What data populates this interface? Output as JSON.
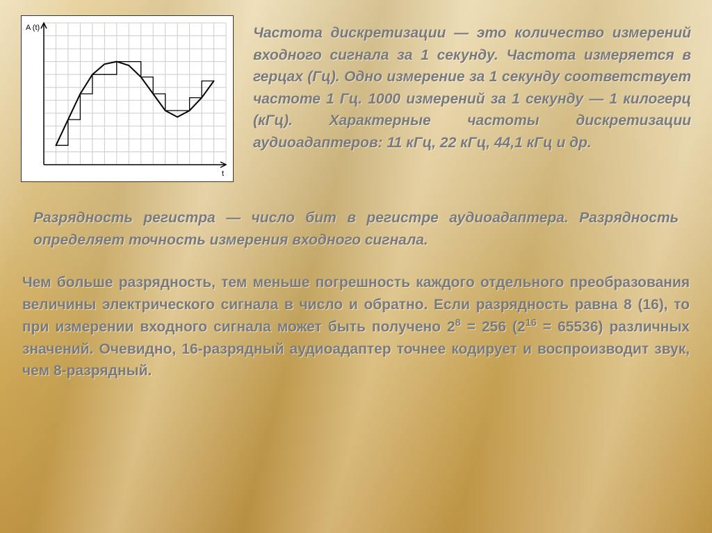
{
  "background": {
    "gradient_top": "#e8d3a0",
    "gradient_bottom": "#c79b47"
  },
  "chart": {
    "type": "line",
    "y_axis_label": "A (t)",
    "x_axis_label": "t",
    "grid_color": "#cccccc",
    "axis_color": "#000000",
    "curve_color": "#000000",
    "step_color": "#000000",
    "background_color": "#ffffff",
    "grid_cols": 15,
    "grid_rows": 11,
    "curve_points": [
      [
        1.0,
        9.5
      ],
      [
        2.0,
        7.5
      ],
      [
        3.0,
        5.5
      ],
      [
        4.0,
        4.0
      ],
      [
        5.0,
        3.2
      ],
      [
        6.0,
        3.0
      ],
      [
        7.0,
        3.3
      ],
      [
        8.0,
        4.2
      ],
      [
        9.0,
        5.5
      ],
      [
        10.0,
        6.8
      ],
      [
        11.0,
        7.3
      ],
      [
        12.0,
        6.8
      ],
      [
        13.0,
        5.8
      ],
      [
        14.0,
        4.5
      ]
    ],
    "step_points": [
      [
        1.0,
        9.5
      ],
      [
        2.0,
        9.5
      ],
      [
        2.0,
        7.5
      ],
      [
        3.0,
        7.5
      ],
      [
        3.0,
        5.5
      ],
      [
        4.0,
        5.5
      ],
      [
        4.0,
        4.0
      ],
      [
        6.0,
        4.0
      ],
      [
        6.0,
        3.0
      ],
      [
        8.0,
        3.0
      ],
      [
        8.0,
        4.2
      ],
      [
        9.0,
        4.2
      ],
      [
        9.0,
        5.5
      ],
      [
        10.0,
        5.5
      ],
      [
        10.0,
        6.8
      ],
      [
        12.0,
        6.8
      ],
      [
        12.0,
        5.8
      ],
      [
        13.0,
        5.8
      ],
      [
        13.0,
        4.5
      ],
      [
        14.0,
        4.5
      ]
    ],
    "label_fontsize": 11
  },
  "text": {
    "color": "#7a7a7a",
    "shadow_color": "#ffffff",
    "fontsize_pt": 16,
    "para1": "Частота дискретизации — это количество измерений входного сигнала за 1 секунду. Частота измеряется в герцах (Гц). Одно измерение за 1 секунду соответствует частоте 1 Гц. 1000 измерений за 1 секунду — 1 килогерц (кГц). Характерные частоты дискретизации аудиоадаптеров: 11 кГц, 22 кГц, 44,1 кГц и др.",
    "para2": "Разрядность регистра — число бит в регистре аудиоадаптера. Разрядность определяет точность измерения входного сигнала.",
    "para3_html": "Чем больше разрядность, тем меньше погрешность каждого отдельного преобразования величины электрического сигнала в число и обратно. Если разрядность равна 8 (16), то при измерении входного сигнала может быть получено 2<sup>8</sup> = 256 (2<sup>16</sup> = 65536) различных значений. Очевидно, 16-разрядный аудиоадаптер точнее кодирует и воспроизводит звук, чем 8-разрядный."
  }
}
